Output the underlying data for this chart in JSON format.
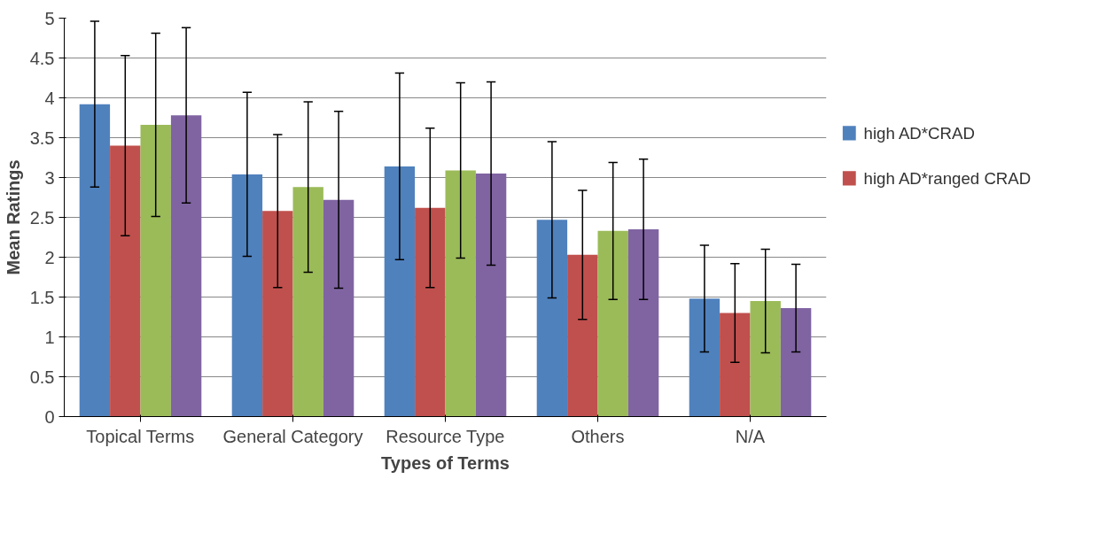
{
  "chart_data": {
    "type": "bar",
    "xlabel": "Types of Terms",
    "ylabel": "Mean Ratings",
    "categories": [
      "Topical Terms",
      "General Category",
      "Resource Type",
      "Others",
      "N/A"
    ],
    "series": [
      {
        "name": "high AD*CRAD",
        "color": "#4f81bd",
        "values": [
          3.92,
          3.04,
          3.14,
          2.47,
          1.48
        ],
        "errors": [
          1.04,
          1.03,
          1.17,
          0.98,
          0.67
        ]
      },
      {
        "name": "high AD*ranged CRAD",
        "color": "#c0504d",
        "values": [
          3.4,
          2.58,
          2.62,
          2.03,
          1.3
        ],
        "errors": [
          1.13,
          0.96,
          1.0,
          0.81,
          0.62
        ]
      },
      {
        "color": "#9bbb59",
        "values": [
          3.66,
          2.88,
          3.09,
          2.33,
          1.45
        ],
        "errors": [
          1.15,
          1.07,
          1.1,
          0.86,
          0.65
        ]
      },
      {
        "color": "#8064a2",
        "values": [
          3.78,
          2.72,
          3.05,
          2.35,
          1.36
        ],
        "errors": [
          1.1,
          1.11,
          1.15,
          0.88,
          0.55
        ]
      }
    ],
    "ylim": [
      0,
      5
    ],
    "yticks": [
      0,
      0.5,
      1,
      1.5,
      2,
      2.5,
      3,
      3.5,
      4,
      4.5,
      5
    ],
    "grid": "y",
    "legend": "right"
  }
}
